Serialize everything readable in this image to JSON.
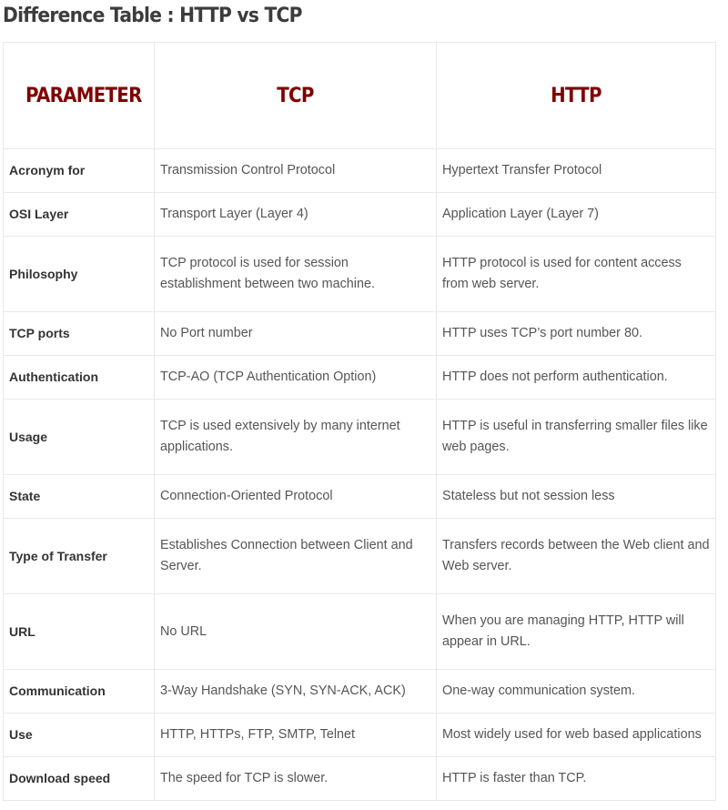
{
  "title": "Difference Table :  HTTP vs TCP",
  "header": {
    "parameter": "PARAMETER",
    "tcp": "TCP",
    "http": "HTTP"
  },
  "rows": [
    {
      "parameter": "Acronym for",
      "tcp": "Transmission Control Protocol",
      "http": "Hypertext Transfer Protocol"
    },
    {
      "parameter": "OSI Layer",
      "tcp": "Transport Layer (Layer 4)",
      "http": "Application Layer (Layer 7)"
    },
    {
      "parameter": "Philosophy",
      "tcp": "TCP protocol is used for session establishment between two machine.",
      "http": "HTTP protocol is used for content access from web server."
    },
    {
      "parameter": "TCP ports",
      "tcp": "No Port number",
      "http": "HTTP uses TCP’s port number 80."
    },
    {
      "parameter": "Authentication",
      "tcp": "TCP-AO (TCP Authentication Option)",
      "http": "HTTP does not perform authentication."
    },
    {
      "parameter": "Usage",
      "tcp": "TCP is used extensively by many internet applications.",
      "http": "HTTP is useful in transferring smaller files like web pages."
    },
    {
      "parameter": "State",
      "tcp": "Connection-Oriented Protocol",
      "http": "Stateless but not session less"
    },
    {
      "parameter": "Type of Transfer",
      "tcp": "Establishes Connection between Client and Server.",
      "http": "Transfers records between the Web client and Web server."
    },
    {
      "parameter": "URL",
      "tcp": "No URL",
      "http": "When you are managing HTTP, HTTP will appear in URL."
    },
    {
      "parameter": "Communication",
      "tcp": "3-Way Handshake (SYN, SYN-ACK, ACK)",
      "http": "One-way communication system."
    },
    {
      "parameter": "Use",
      "tcp": "HTTP, HTTPs, FTP, SMTP, Telnet",
      "http": "Most widely used for web based applications"
    },
    {
      "parameter": "Download speed",
      "tcp": "The speed for TCP is slower.",
      "http": "HTTP is faster than TCP."
    }
  ]
}
